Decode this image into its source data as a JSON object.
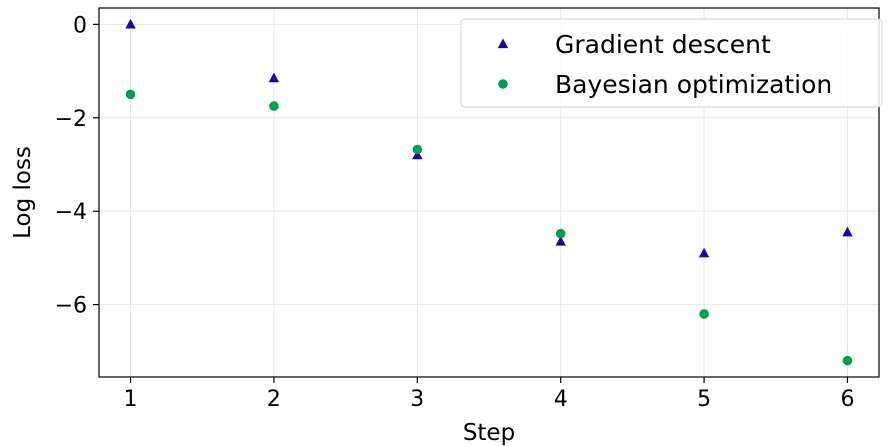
{
  "chart_data": {
    "type": "scatter",
    "xlabel": "Step",
    "ylabel": "Log loss",
    "xlim": [
      0.78,
      6.22
    ],
    "ylim": [
      -7.55,
      0.35
    ],
    "x_ticks": [
      1,
      2,
      3,
      4,
      5,
      6
    ],
    "y_ticks": [
      0,
      -2,
      -4,
      -6
    ],
    "y_tick_labels": [
      "0",
      "−2",
      "−4",
      "−6"
    ],
    "grid": true,
    "legend_position": "top-right",
    "series": [
      {
        "name": "Gradient descent",
        "marker": "triangle",
        "color": "#2200aa",
        "x": [
          1,
          2,
          3,
          4,
          5,
          6
        ],
        "y": [
          0.0,
          -1.15,
          -2.8,
          -4.65,
          -4.9,
          -4.45
        ]
      },
      {
        "name": "Bayesian optimization",
        "marker": "circle",
        "color": "#00a050",
        "x": [
          1,
          2,
          3,
          4,
          5,
          6
        ],
        "y": [
          -1.5,
          -1.75,
          -2.68,
          -4.48,
          -6.2,
          -7.2
        ]
      }
    ]
  }
}
